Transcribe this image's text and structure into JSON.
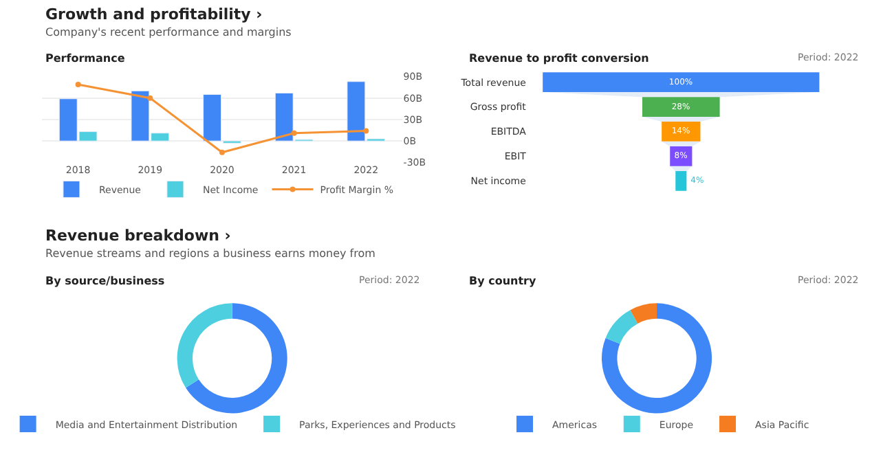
{
  "chart_data": [
    {
      "type": "bar",
      "title": "Performance",
      "annotations": [
        "Growth and profitability ›",
        "Company's recent performance and margins"
      ],
      "categories": [
        "2018",
        "2019",
        "2020",
        "2021",
        "2022"
      ],
      "series": [
        {
          "name": "Revenue",
          "type": "bar",
          "color": "#3f86f7",
          "values": [
            59,
            70,
            65,
            67,
            83
          ]
        },
        {
          "name": "Net Income",
          "type": "bar",
          "color": "#4dcfe0",
          "values": [
            13,
            11,
            -3,
            2,
            3
          ]
        },
        {
          "name": "Profit Margin %",
          "type": "line",
          "color": "#f59233",
          "marker": "circle",
          "values": [
            79,
            60,
            -16,
            11,
            14
          ]
        }
      ],
      "ylim": [
        -30,
        90
      ],
      "yticks": [
        {
          "value": -30,
          "label": "-30B"
        },
        {
          "value": 0,
          "label": "0B"
        },
        {
          "value": 30,
          "label": "30B"
        },
        {
          "value": 60,
          "label": "60B"
        },
        {
          "value": 90,
          "label": "90B"
        }
      ],
      "grid": "y",
      "legend": "bottom"
    },
    {
      "type": "other",
      "title": "Revenue to profit conversion",
      "annotations": [
        "Period: 2022"
      ],
      "categories": [
        "Total revenue",
        "Gross profit",
        "EBITDA",
        "EBIT",
        "Net income"
      ],
      "values": [
        100,
        28,
        14,
        8,
        4
      ],
      "value_labels": [
        "100%",
        "28%",
        "14%",
        "8%",
        "4%"
      ],
      "colors": [
        "#3f86f7",
        "#4caf50",
        "#ff9800",
        "#7c4dff",
        "#26c6da"
      ]
    },
    {
      "type": "donut",
      "title": "By source/business",
      "annotations": [
        "Revenue breakdown ›",
        "Revenue streams and regions a business earns money from",
        "Period: 2022"
      ],
      "categories": [
        "Media and Entertainment Distribution",
        "Parks, Experiences and Products"
      ],
      "values": [
        66,
        34
      ],
      "colors": [
        "#3f86f7",
        "#4dcfe0"
      ],
      "legend": "bottom"
    },
    {
      "type": "donut",
      "title": "By country",
      "annotations": [
        "Period: 2022"
      ],
      "categories": [
        "Americas",
        "Europe",
        "Asia Pacific"
      ],
      "values": [
        81,
        11,
        8
      ],
      "colors": [
        "#3f86f7",
        "#4dcfe0",
        "#f57c20"
      ],
      "legend": "bottom"
    }
  ]
}
